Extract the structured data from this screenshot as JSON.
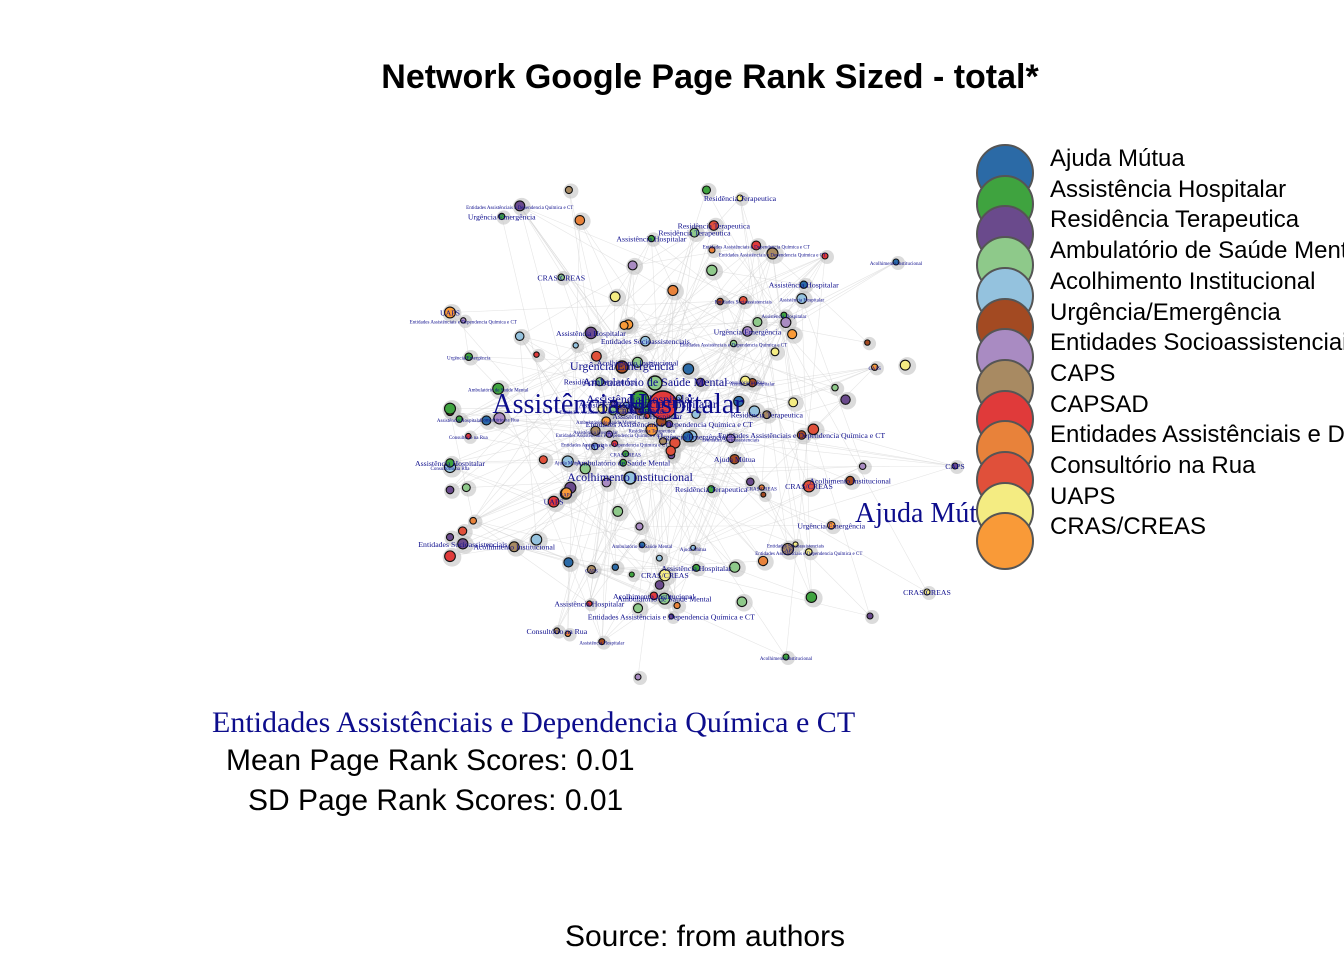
{
  "title": "Network Google Page Rank Sized - total*",
  "legend": [
    {
      "label": "Ajuda Mútua",
      "color": "#2b6aa6"
    },
    {
      "label": "Assistência Hospitalar",
      "color": "#3fa33f"
    },
    {
      "label": "Residência Terapeutica",
      "color": "#6a4a8c"
    },
    {
      "label": "Ambulatório de Saúde Mental",
      "color": "#8ec98a"
    },
    {
      "label": "Acolhimento Institucional",
      "color": "#94c2de"
    },
    {
      "label": "Urgência/Emergência",
      "color": "#a34a22"
    },
    {
      "label": "Entidades Socioassistenciais",
      "color": "#a98bc2"
    },
    {
      "label": "CAPS",
      "color": "#a88a62"
    },
    {
      "label": "CAPSAD",
      "color": "#e03a3a"
    },
    {
      "label": "Entidades Assistênciais e Dependencia Química e CT",
      "color": "#e8823a"
    },
    {
      "label": "Consultório na Rua",
      "color": "#e0503a"
    },
    {
      "label": "UAPS",
      "color": "#f4ec82"
    },
    {
      "label": "CRAS/CREAS",
      "color": "#f99a38"
    }
  ],
  "highlight_label": "Entidades Assistênciais e Dependencia Química e CT",
  "stats": {
    "mean": "Mean Page Rank Scores: 0.01",
    "sd": "SD Page Rank Scores: 0.01"
  },
  "source": "Source: from authors",
  "network": {
    "big_labels": [
      {
        "text": "Assistência Hospitalar",
        "category": 1
      },
      {
        "text": "Ajuda Mútua",
        "category": 0
      }
    ],
    "node_labels": [
      "Entidades Assistênciais e Dependencia Química e CT",
      "Residência Terapeutica",
      "UAPS",
      "CAPS",
      "CRAS/CREAS",
      "Assistência Hospitalar",
      "Entidades Socioassistenciais",
      "Ambulatório de Saúde Mental",
      "Consultório na Rua",
      "Urgência/Emergência",
      "Acolhimento Institucional",
      "Ajuda Mútua"
    ]
  }
}
